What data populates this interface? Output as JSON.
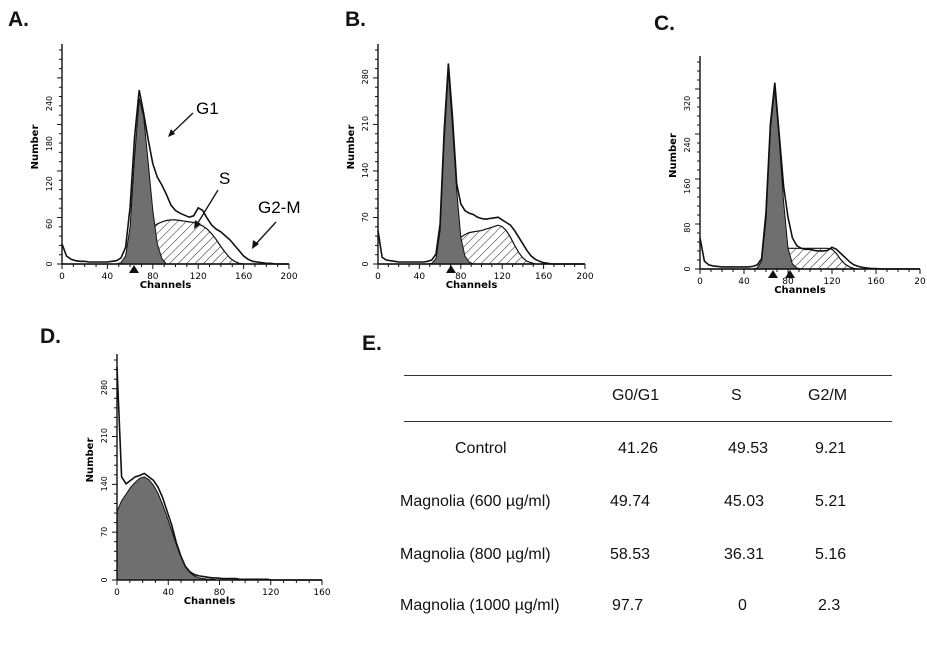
{
  "panels": [
    {
      "letter": "A."
    },
    {
      "letter": "B."
    },
    {
      "letter": "C."
    },
    {
      "letter": "D."
    },
    {
      "letter": "E."
    }
  ],
  "colors": {
    "ink": "#111111",
    "fill_dark": "#6f6f6f",
    "hatch": "#222222"
  },
  "chart_data": [
    {
      "panel": "A.",
      "type": "area",
      "xlabel": "Channels",
      "ylabel": "Number",
      "xlim": [
        0,
        200
      ],
      "ylim": [
        0,
        320
      ],
      "xticks": [
        "0",
        "40",
        "80",
        "120",
        "160",
        "200"
      ],
      "yticks": [
        "0",
        "60",
        "120",
        "180",
        "240"
      ],
      "x": [
        0,
        4,
        8,
        12,
        16,
        20,
        24,
        28,
        32,
        36,
        40,
        44,
        48,
        52,
        56,
        60,
        64,
        68,
        72,
        76,
        80,
        84,
        88,
        92,
        96,
        100,
        104,
        108,
        112,
        116,
        120,
        124,
        128,
        132,
        136,
        140,
        144,
        148,
        152,
        156,
        160,
        164,
        168,
        172,
        176,
        180,
        184,
        188,
        192,
        196,
        200
      ],
      "series": [
        {
          "role": "measured",
          "values": [
            30,
            12,
            7,
            5,
            4,
            4,
            3,
            3,
            3,
            3,
            3,
            4,
            5,
            9,
            25,
            85,
            190,
            260,
            225,
            185,
            150,
            130,
            118,
            104,
            88,
            80,
            76,
            73,
            70,
            72,
            84,
            80,
            68,
            58,
            52,
            48,
            42,
            36,
            28,
            20,
            12,
            7,
            4,
            3,
            2,
            1,
            1,
            0,
            0,
            0,
            0
          ]
        },
        {
          "role": "G0/G1 fit",
          "values": [
            0,
            0,
            0,
            0,
            0,
            0,
            0,
            0,
            0,
            0,
            0,
            0,
            0,
            2,
            12,
            55,
            160,
            248,
            220,
            150,
            80,
            30,
            8,
            0,
            0,
            0,
            0,
            0,
            0,
            0,
            0,
            0,
            0,
            0,
            0,
            0,
            0,
            0,
            0,
            0,
            0,
            0,
            0,
            0,
            0,
            0,
            0,
            0,
            0,
            0,
            0
          ]
        },
        {
          "role": "S fit",
          "values": [
            0,
            0,
            0,
            0,
            0,
            0,
            0,
            0,
            0,
            0,
            0,
            0,
            0,
            0,
            0,
            5,
            15,
            28,
            38,
            48,
            55,
            60,
            63,
            65,
            66,
            66,
            65,
            64,
            63,
            62,
            60,
            57,
            52,
            45,
            36,
            26,
            17,
            9,
            4,
            1,
            0,
            0,
            0,
            0,
            0,
            0,
            0,
            0,
            0,
            0,
            0
          ]
        }
      ],
      "annotations": [
        "G1",
        "S",
        "G2-M"
      ]
    },
    {
      "panel": "B.",
      "type": "area",
      "xlabel": "Channels",
      "ylabel": "Number",
      "xlim": [
        0,
        200
      ],
      "ylim": [
        0,
        320
      ],
      "xticks": [
        "0",
        "40",
        "80",
        "120",
        "160",
        "200"
      ],
      "yticks": [
        "0",
        "70",
        "140",
        "210",
        "280"
      ],
      "x": [
        0,
        4,
        8,
        12,
        16,
        20,
        24,
        28,
        32,
        36,
        40,
        44,
        48,
        52,
        56,
        60,
        64,
        68,
        72,
        76,
        80,
        84,
        88,
        92,
        96,
        100,
        104,
        108,
        112,
        116,
        120,
        124,
        128,
        132,
        136,
        140,
        144,
        148,
        152,
        156,
        160,
        164,
        168,
        172,
        176,
        180,
        184,
        188,
        192,
        196,
        200
      ],
      "series": [
        {
          "role": "measured",
          "values": [
            50,
            10,
            6,
            5,
            4,
            3,
            3,
            3,
            3,
            3,
            3,
            3,
            4,
            6,
            15,
            60,
            200,
            300,
            220,
            120,
            90,
            80,
            76,
            74,
            70,
            68,
            67,
            68,
            69,
            70,
            66,
            62,
            58,
            50,
            40,
            30,
            20,
            12,
            7,
            4,
            2,
            1,
            0,
            0,
            0,
            0,
            0,
            0,
            0,
            0,
            0
          ]
        },
        {
          "role": "G0/G1 fit",
          "values": [
            0,
            0,
            0,
            0,
            0,
            0,
            0,
            0,
            0,
            0,
            0,
            0,
            0,
            1,
            8,
            50,
            185,
            290,
            205,
            110,
            40,
            12,
            3,
            0,
            0,
            0,
            0,
            0,
            0,
            0,
            0,
            0,
            0,
            0,
            0,
            0,
            0,
            0,
            0,
            0,
            0,
            0,
            0,
            0,
            0,
            0,
            0,
            0,
            0,
            0,
            0
          ]
        },
        {
          "role": "S fit",
          "values": [
            0,
            0,
            0,
            0,
            0,
            0,
            0,
            0,
            0,
            0,
            0,
            0,
            0,
            0,
            0,
            2,
            8,
            16,
            25,
            33,
            40,
            44,
            47,
            48,
            49,
            50,
            52,
            54,
            56,
            58,
            56,
            50,
            40,
            28,
            17,
            9,
            4,
            2,
            0,
            0,
            0,
            0,
            0,
            0,
            0,
            0,
            0,
            0,
            0,
            0,
            0
          ]
        }
      ]
    },
    {
      "panel": "C.",
      "type": "area",
      "xlabel": "Channels",
      "ylabel": "Number",
      "xlim": [
        0,
        200
      ],
      "ylim": [
        0,
        400
      ],
      "xticks": [
        "0",
        "40",
        "80",
        "120",
        "160",
        "20"
      ],
      "yticks": [
        "0",
        "80",
        "160",
        "240",
        "320"
      ],
      "x": [
        0,
        4,
        8,
        12,
        16,
        20,
        24,
        28,
        32,
        36,
        40,
        44,
        48,
        52,
        56,
        60,
        64,
        68,
        72,
        76,
        80,
        84,
        88,
        92,
        96,
        100,
        104,
        108,
        112,
        116,
        120,
        124,
        128,
        132,
        136,
        140,
        144,
        148,
        152,
        156,
        160,
        164,
        168,
        172,
        176,
        180,
        184,
        188,
        192,
        196,
        200
      ],
      "series": [
        {
          "role": "measured",
          "values": [
            60,
            15,
            8,
            6,
            5,
            4,
            4,
            4,
            4,
            4,
            4,
            4,
            5,
            8,
            20,
            110,
            280,
            360,
            260,
            160,
            100,
            60,
            45,
            40,
            38,
            38,
            36,
            35,
            35,
            36,
            42,
            38,
            30,
            22,
            14,
            8,
            5,
            3,
            2,
            1,
            1,
            0,
            0,
            0,
            0,
            0,
            0,
            0,
            0,
            0,
            0
          ]
        },
        {
          "role": "G0/G1 fit",
          "values": [
            0,
            0,
            0,
            0,
            0,
            0,
            0,
            0,
            0,
            0,
            0,
            0,
            0,
            2,
            15,
            95,
            270,
            350,
            250,
            130,
            40,
            10,
            2,
            0,
            0,
            0,
            0,
            0,
            0,
            0,
            0,
            0,
            0,
            0,
            0,
            0,
            0,
            0,
            0,
            0,
            0,
            0,
            0,
            0,
            0,
            0,
            0,
            0,
            0,
            0,
            0
          ]
        },
        {
          "role": "S fit",
          "values": [
            0,
            0,
            0,
            0,
            0,
            0,
            0,
            0,
            0,
            0,
            0,
            0,
            0,
            0,
            0,
            0,
            10,
            25,
            35,
            38,
            40,
            40,
            40,
            40,
            40,
            40,
            40,
            40,
            40,
            40,
            38,
            30,
            18,
            9,
            4,
            1,
            0,
            0,
            0,
            0,
            0,
            0,
            0,
            0,
            0,
            0,
            0,
            0,
            0,
            0,
            0
          ]
        }
      ]
    },
    {
      "panel": "D.",
      "type": "area",
      "xlabel": "Channels",
      "ylabel": "Number",
      "xlim": [
        0,
        180
      ],
      "ylim": [
        0,
        320
      ],
      "xticks": [
        "0",
        "40",
        "80",
        "120",
        "160"
      ],
      "yticks": [
        "0",
        "70",
        "140",
        "210",
        "280"
      ],
      "x": [
        0,
        4,
        8,
        12,
        16,
        20,
        24,
        28,
        32,
        36,
        40,
        44,
        48,
        52,
        56,
        60,
        64,
        68,
        72,
        76,
        80,
        84,
        88,
        92,
        96,
        100,
        104,
        108,
        112,
        116,
        120,
        124,
        128,
        132,
        136,
        140,
        144,
        148,
        152,
        156,
        160,
        164,
        168,
        172,
        176,
        180
      ],
      "series": [
        {
          "role": "measured",
          "values": [
            310,
            150,
            140,
            145,
            150,
            152,
            155,
            150,
            145,
            135,
            120,
            100,
            80,
            55,
            35,
            20,
            12,
            8,
            6,
            5,
            4,
            3,
            3,
            2,
            2,
            2,
            2,
            1,
            1,
            1,
            1,
            1,
            1,
            1,
            0,
            0,
            0,
            0,
            0,
            0,
            0,
            0,
            0,
            0,
            0,
            0
          ]
        },
        {
          "role": "fit",
          "values": [
            100,
            115,
            125,
            135,
            142,
            148,
            150,
            146,
            138,
            126,
            110,
            92,
            72,
            52,
            34,
            20,
            11,
            6,
            3,
            2,
            1,
            1,
            0,
            0,
            0,
            0,
            0,
            0,
            0,
            0,
            0,
            0,
            0,
            0,
            0,
            0,
            0,
            0,
            0,
            0,
            0,
            0,
            0,
            0,
            0,
            0
          ]
        }
      ]
    },
    {
      "panel": "E.",
      "type": "table",
      "columns": [
        "",
        "G0/G1",
        "S",
        "G2/M"
      ],
      "rows": [
        {
          "label": "Control",
          "cells": [
            "41.26",
            "49.53",
            "9.21"
          ]
        },
        {
          "label": "Magnolia (600 µg/ml)",
          "cells": [
            "49.74",
            "45.03",
            "5.21"
          ]
        },
        {
          "label": "Magnolia (800 µg/ml)",
          "cells": [
            "58.53",
            "36.31",
            "5.16"
          ]
        },
        {
          "label": "Magnolia (1000 µg/ml)",
          "cells": [
            "97.7",
            "0",
            "2.3"
          ]
        }
      ]
    }
  ]
}
